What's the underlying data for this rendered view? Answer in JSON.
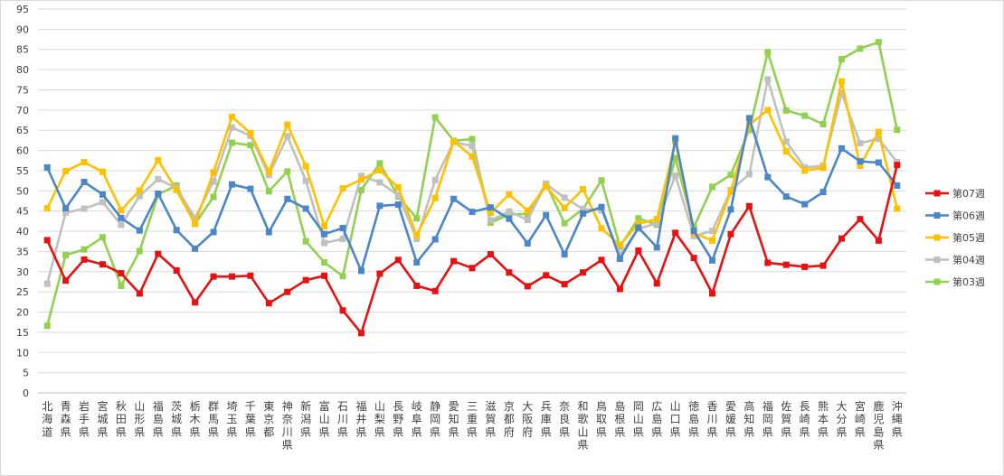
{
  "chart_data": {
    "type": "line",
    "title": "",
    "xlabel": "",
    "ylabel": "",
    "ylim": [
      0,
      95
    ],
    "ytick_step": 5,
    "grid": true,
    "legend_position": "right",
    "categories": [
      "北海道",
      "青森県",
      "岩手県",
      "宮城県",
      "秋田県",
      "山形県",
      "福島県",
      "茨城県",
      "栃木県",
      "群馬県",
      "埼玉県",
      "千葉県",
      "東京都",
      "神奈川県",
      "新潟県",
      "富山県",
      "石川県",
      "福井県",
      "山梨県",
      "長野県",
      "岐阜県",
      "静岡県",
      "愛知県",
      "三重県",
      "滋賀県",
      "京都府",
      "大阪府",
      "兵庫県",
      "奈良県",
      "和歌山県",
      "鳥取県",
      "島根県",
      "岡山県",
      "広島県",
      "山口県",
      "徳島県",
      "香川県",
      "愛媛県",
      "高知県",
      "福岡県",
      "佐賀県",
      "長崎県",
      "熊本県",
      "大分県",
      "宮崎県",
      "鹿児島県",
      "沖縄県"
    ],
    "series": [
      {
        "name": "第07週",
        "color": "#e81010",
        "values": [
          37.8,
          27.8,
          33,
          31.8,
          29.6,
          24.6,
          34.4,
          30.3,
          22.4,
          28.8,
          28.8,
          29,
          22.2,
          25,
          27.9,
          29,
          20.4,
          14.8,
          29.5,
          32.9,
          26.5,
          25.2,
          32.6,
          30.9,
          34.3,
          29.8,
          26.4,
          29.1,
          26.9,
          29.8,
          32.9,
          25.7,
          35.2,
          27.1,
          39.6,
          33.4,
          24.6,
          39.3,
          46.2,
          32.2,
          31.7,
          31.2,
          31.5,
          38.2,
          43,
          37.7,
          56.4
        ]
      },
      {
        "name": "第06週",
        "color": "#4a86c8",
        "values": [
          55.8,
          45.7,
          52.2,
          49.1,
          43.3,
          40.2,
          49.3,
          40.3,
          35.7,
          39.8,
          51.6,
          50.5,
          39.8,
          48,
          45.6,
          39.3,
          40.8,
          30.2,
          46.3,
          46.6,
          32.3,
          38,
          48,
          44.8,
          45.9,
          43.1,
          37,
          44,
          34.3,
          44.4,
          46,
          33.2,
          40.9,
          36,
          63,
          40.1,
          32.8,
          45.4,
          68,
          53.4,
          48.6,
          46.7,
          49.7,
          60.5,
          57.3,
          57,
          51.3
        ]
      },
      {
        "name": "第05週",
        "color": "#ffc000",
        "values": [
          45.7,
          54.9,
          57.1,
          54.7,
          45.2,
          50.1,
          57.6,
          50.2,
          41.8,
          54.6,
          68.3,
          64.3,
          54.7,
          66.4,
          56.1,
          41.2,
          50.6,
          52.8,
          55.1,
          50.9,
          39,
          48.2,
          62.3,
          58.5,
          44.6,
          49.1,
          45.1,
          51.1,
          45.8,
          50.4,
          40.7,
          36.6,
          41.9,
          43,
          62.2,
          39.5,
          37.7,
          49.8,
          66.3,
          70,
          59.8,
          55,
          55.7,
          77.1,
          56.2,
          64.6,
          45.6
        ]
      },
      {
        "name": "第04週",
        "color": "#c0c0c0",
        "values": [
          27,
          44.6,
          45.6,
          47.2,
          41.6,
          48.7,
          52.9,
          50.7,
          43.3,
          52.3,
          65.7,
          63.6,
          53.9,
          63.5,
          52.5,
          37.1,
          38.1,
          53.7,
          52.1,
          48.9,
          38.1,
          52.7,
          62.1,
          61.1,
          42.7,
          44.9,
          42.8,
          51.7,
          48.3,
          45.5,
          45.2,
          34.3,
          40.6,
          42,
          53.8,
          38.8,
          40.1,
          50.2,
          54.1,
          77.6,
          62.2,
          55.8,
          56.2,
          74.2,
          61.8,
          62.9,
          57.1
        ]
      },
      {
        "name": "第03週",
        "color": "#92d050",
        "values": [
          16.6,
          34.1,
          35.5,
          38.5,
          26.5,
          35.1,
          49.1,
          51.3,
          41.8,
          48.5,
          61.9,
          61.3,
          49.9,
          54.8,
          37.5,
          32.3,
          28.9,
          50.2,
          56.8,
          48.6,
          43.2,
          68.2,
          62.4,
          62.8,
          42.1,
          44.2,
          44.3,
          51.8,
          42,
          45.5,
          52.6,
          36.2,
          43.2,
          41.6,
          58.1,
          41,
          51,
          54,
          65.1,
          84.3,
          69.9,
          68.6,
          66.5,
          82.6,
          85.2,
          86.8,
          65.1
        ]
      }
    ]
  }
}
